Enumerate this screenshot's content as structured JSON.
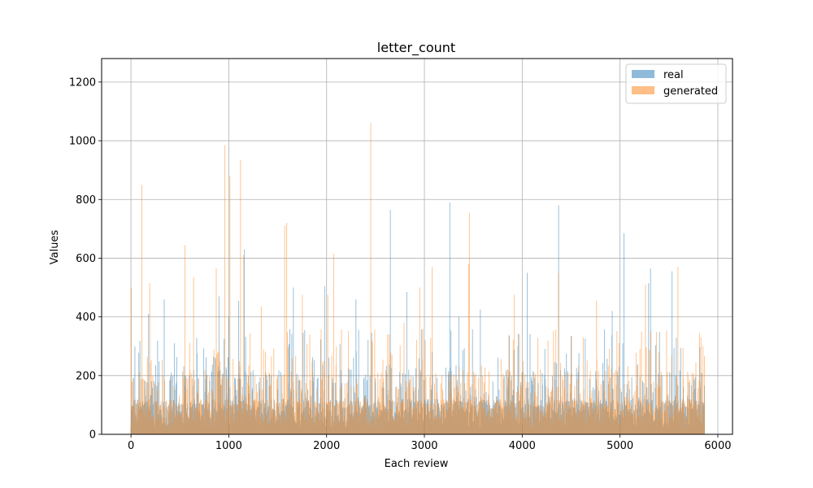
{
  "chart_data": {
    "type": "bar",
    "title": "letter_count",
    "xlabel": "Each review",
    "ylabel": "Values",
    "xlim": [
      -300,
      6150
    ],
    "ylim": [
      0,
      1280
    ],
    "xticks": [
      0,
      1000,
      2000,
      3000,
      4000,
      5000,
      6000
    ],
    "yticks": [
      0,
      200,
      400,
      600,
      800,
      1000,
      1200
    ],
    "grid": true,
    "legend_position": "top-right",
    "n_points": 5866,
    "series": [
      {
        "name": "real",
        "color": "#1f77b4",
        "alpha": 0.5,
        "peaks": [
          {
            "x": 180,
            "y": 410
          },
          {
            "x": 340,
            "y": 460
          },
          {
            "x": 900,
            "y": 470
          },
          {
            "x": 1000,
            "y": 400
          },
          {
            "x": 1100,
            "y": 455
          },
          {
            "x": 1160,
            "y": 630
          },
          {
            "x": 1660,
            "y": 500
          },
          {
            "x": 1980,
            "y": 505
          },
          {
            "x": 2300,
            "y": 460
          },
          {
            "x": 2650,
            "y": 765
          },
          {
            "x": 2820,
            "y": 485
          },
          {
            "x": 3260,
            "y": 790
          },
          {
            "x": 3350,
            "y": 400
          },
          {
            "x": 3570,
            "y": 425
          },
          {
            "x": 4050,
            "y": 550
          },
          {
            "x": 4370,
            "y": 780
          },
          {
            "x": 4500,
            "y": 335
          },
          {
            "x": 4920,
            "y": 420
          },
          {
            "x": 5040,
            "y": 685
          },
          {
            "x": 5290,
            "y": 515
          },
          {
            "x": 5310,
            "y": 565
          },
          {
            "x": 5530,
            "y": 555
          }
        ]
      },
      {
        "name": "generated",
        "color": "#ff7f0e",
        "alpha": 0.5,
        "peaks": [
          {
            "x": 5,
            "y": 500
          },
          {
            "x": 110,
            "y": 850
          },
          {
            "x": 190,
            "y": 515
          },
          {
            "x": 550,
            "y": 645
          },
          {
            "x": 640,
            "y": 535
          },
          {
            "x": 870,
            "y": 565
          },
          {
            "x": 960,
            "y": 985
          },
          {
            "x": 1010,
            "y": 880
          },
          {
            "x": 1120,
            "y": 935
          },
          {
            "x": 1150,
            "y": 610
          },
          {
            "x": 1330,
            "y": 435
          },
          {
            "x": 1570,
            "y": 710
          },
          {
            "x": 1590,
            "y": 720
          },
          {
            "x": 1750,
            "y": 475
          },
          {
            "x": 2010,
            "y": 475
          },
          {
            "x": 2070,
            "y": 615
          },
          {
            "x": 2450,
            "y": 1060
          },
          {
            "x": 2790,
            "y": 380
          },
          {
            "x": 2950,
            "y": 500
          },
          {
            "x": 3080,
            "y": 570
          },
          {
            "x": 3450,
            "y": 580
          },
          {
            "x": 3460,
            "y": 755
          },
          {
            "x": 3920,
            "y": 475
          },
          {
            "x": 4370,
            "y": 550
          },
          {
            "x": 4760,
            "y": 455
          },
          {
            "x": 5260,
            "y": 510
          },
          {
            "x": 5590,
            "y": 570
          },
          {
            "x": 5810,
            "y": 345
          }
        ]
      }
    ]
  }
}
